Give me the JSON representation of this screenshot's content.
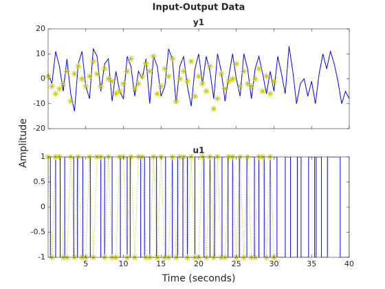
{
  "title": "Input-Output Data",
  "ylabel": "Amplitude",
  "xlabel": "Time (seconds)",
  "chart_data": [
    {
      "type": "line",
      "title": "y1",
      "xlim": [
        0,
        40
      ],
      "ylim": [
        -20,
        20
      ],
      "yticks": [
        -20,
        -10,
        0,
        10,
        20
      ],
      "series": [
        {
          "color": "#c8c800",
          "marker": "*",
          "line": "none",
          "x": [
            0,
            0.5,
            1,
            1.5,
            2,
            2.5,
            3,
            3.5,
            4,
            4.5,
            5,
            5.5,
            6,
            6.5,
            7,
            7.5,
            8,
            8.5,
            9,
            9.5,
            10,
            10.5,
            11,
            11.5,
            12,
            12.5,
            13,
            13.5,
            14,
            14.5,
            15,
            15.5,
            16,
            16.5,
            17,
            17.5,
            18,
            18.5,
            19,
            19.5,
            20,
            20.5,
            21,
            21.5,
            22,
            22.5,
            23,
            23.5,
            24,
            24.5,
            25,
            25.5,
            26,
            26.5,
            27,
            27.5,
            28,
            28.5,
            29,
            29.5,
            30
          ],
          "values": [
            1,
            -3,
            -6,
            -4,
            -2,
            3,
            -9,
            2,
            5,
            0,
            -3,
            1,
            7,
            2,
            -3,
            4,
            0,
            -1,
            -6,
            -5,
            -2,
            3,
            8,
            -4,
            -2,
            1,
            6,
            3,
            9,
            -6,
            -3,
            4,
            1,
            8,
            -9,
            0,
            3,
            -1,
            7,
            -7,
            1,
            -2,
            -5,
            5,
            -12,
            -8,
            2,
            -4,
            -1,
            0,
            6,
            -3,
            3,
            -2,
            -3,
            0,
            4,
            -5,
            1,
            -6,
            -1
          ]
        },
        {
          "color": "#0000ff",
          "marker": "none",
          "line": "solid",
          "x": [
            0,
            0.5,
            1,
            1.5,
            2,
            2.5,
            3,
            3.5,
            4,
            4.5,
            5,
            5.5,
            6,
            6.5,
            7,
            7.5,
            8,
            8.5,
            9,
            9.5,
            10,
            10.5,
            11,
            11.5,
            12,
            12.5,
            13,
            13.5,
            14,
            14.5,
            15,
            15.5,
            16,
            16.5,
            17,
            17.5,
            18,
            18.5,
            19,
            19.5,
            20,
            20.5,
            21,
            21.5,
            22,
            22.5,
            23,
            23.5,
            24,
            24.5,
            25,
            25.5,
            26,
            26.5,
            27,
            27.5,
            28,
            28.5,
            29,
            29.5,
            30,
            30.5,
            31,
            31.5,
            32,
            32.5,
            33,
            33.5,
            34,
            34.5,
            35,
            35.5,
            36,
            36.5,
            37,
            37.5,
            38,
            38.5,
            39,
            39.5,
            40
          ],
          "values": [
            2,
            -2,
            11,
            5,
            -5,
            8,
            -6,
            -13,
            6,
            11,
            -3,
            -8,
            12,
            9,
            -5,
            6,
            8,
            -9,
            3,
            -5,
            -8,
            9,
            5,
            -7,
            3,
            0,
            8,
            -10,
            9,
            5,
            -7,
            -3,
            12,
            8,
            -10,
            5,
            9,
            -3,
            -11,
            4,
            10,
            -2,
            9,
            3,
            -8,
            10,
            3,
            -9,
            1,
            10,
            0,
            -7,
            10,
            4,
            -8,
            4,
            9,
            2,
            -6,
            3,
            -5,
            9,
            2,
            -6,
            13,
            3,
            -10,
            -2,
            0,
            -7,
            -1,
            -10,
            2,
            10,
            4,
            11,
            6,
            -1,
            -10,
            -5,
            -8
          ]
        }
      ]
    },
    {
      "type": "line",
      "title": "u1",
      "xlim": [
        0,
        40
      ],
      "ylim": [
        -1,
        1
      ],
      "yticks": [
        -1,
        -0.5,
        0,
        0.5,
        1
      ],
      "xticks": [
        5,
        10,
        15,
        20,
        25,
        30,
        35,
        40
      ],
      "series": [
        {
          "color": "#c8c800",
          "marker": "*",
          "line": "dotted",
          "x": [
            0,
            0.5,
            1,
            1.5,
            2,
            2.5,
            3,
            3.5,
            4,
            4.5,
            5,
            5.5,
            6,
            6.5,
            7,
            7.5,
            8,
            8.5,
            9,
            9.5,
            10,
            10.5,
            11,
            11.5,
            12,
            12.5,
            13,
            13.5,
            14,
            14.5,
            15,
            15.5,
            16,
            16.5,
            17,
            17.5,
            18,
            18.5,
            19,
            19.5,
            20,
            20.5,
            21,
            21.5,
            22,
            22.5,
            23,
            23.5,
            24,
            24.5,
            25,
            25.5,
            26,
            26.5,
            27,
            27.5,
            28,
            28.5,
            29,
            29.5,
            30
          ],
          "values": [
            1,
            -1,
            1,
            1,
            -1,
            -1,
            1,
            -1,
            1,
            -1,
            -1,
            1,
            -1,
            1,
            1,
            -1,
            1,
            -1,
            -1,
            1,
            1,
            -1,
            1,
            -1,
            1,
            1,
            -1,
            -1,
            1,
            -1,
            1,
            -1,
            -1,
            1,
            -1,
            1,
            1,
            -1,
            1,
            -1,
            -1,
            1,
            -1,
            1,
            -1,
            1,
            -1,
            -1,
            1,
            1,
            -1,
            1,
            -1,
            1,
            -1,
            -1,
            1,
            1,
            -1,
            1,
            -1
          ]
        },
        {
          "color": "#0000ff",
          "marker": "none",
          "line": "step",
          "x": [
            0,
            0.3,
            1,
            1.6,
            2.2,
            3.4,
            3.9,
            4.6,
            5.6,
            7,
            7.5,
            8.5,
            9.6,
            10.5,
            10.9,
            12.3,
            12.8,
            13.5,
            14.4,
            15.6,
            16.5,
            17.2,
            17.9,
            18.5,
            19.5,
            20.7,
            21.5,
            22.1,
            23.1,
            23.9,
            24.5,
            25.4,
            26.4,
            27.4,
            28,
            28.7,
            29.5,
            30.4,
            31.5,
            32.2,
            33.1,
            33.6,
            34.6,
            35.4,
            35.6,
            36.3,
            37.1,
            38.8,
            40
          ],
          "values": [
            1,
            -1,
            1,
            -1,
            1,
            -1,
            1,
            -1,
            1,
            -1,
            1,
            -1,
            1,
            -1,
            1,
            -1,
            1,
            -1,
            1,
            -1,
            1,
            -1,
            1,
            -1,
            1,
            -1,
            1,
            -1,
            1,
            -1,
            1,
            -1,
            1,
            -1,
            1,
            -1,
            1,
            -1,
            1,
            -1,
            1,
            -1,
            1,
            -1,
            1,
            -1,
            1,
            -1,
            1
          ]
        }
      ]
    }
  ]
}
